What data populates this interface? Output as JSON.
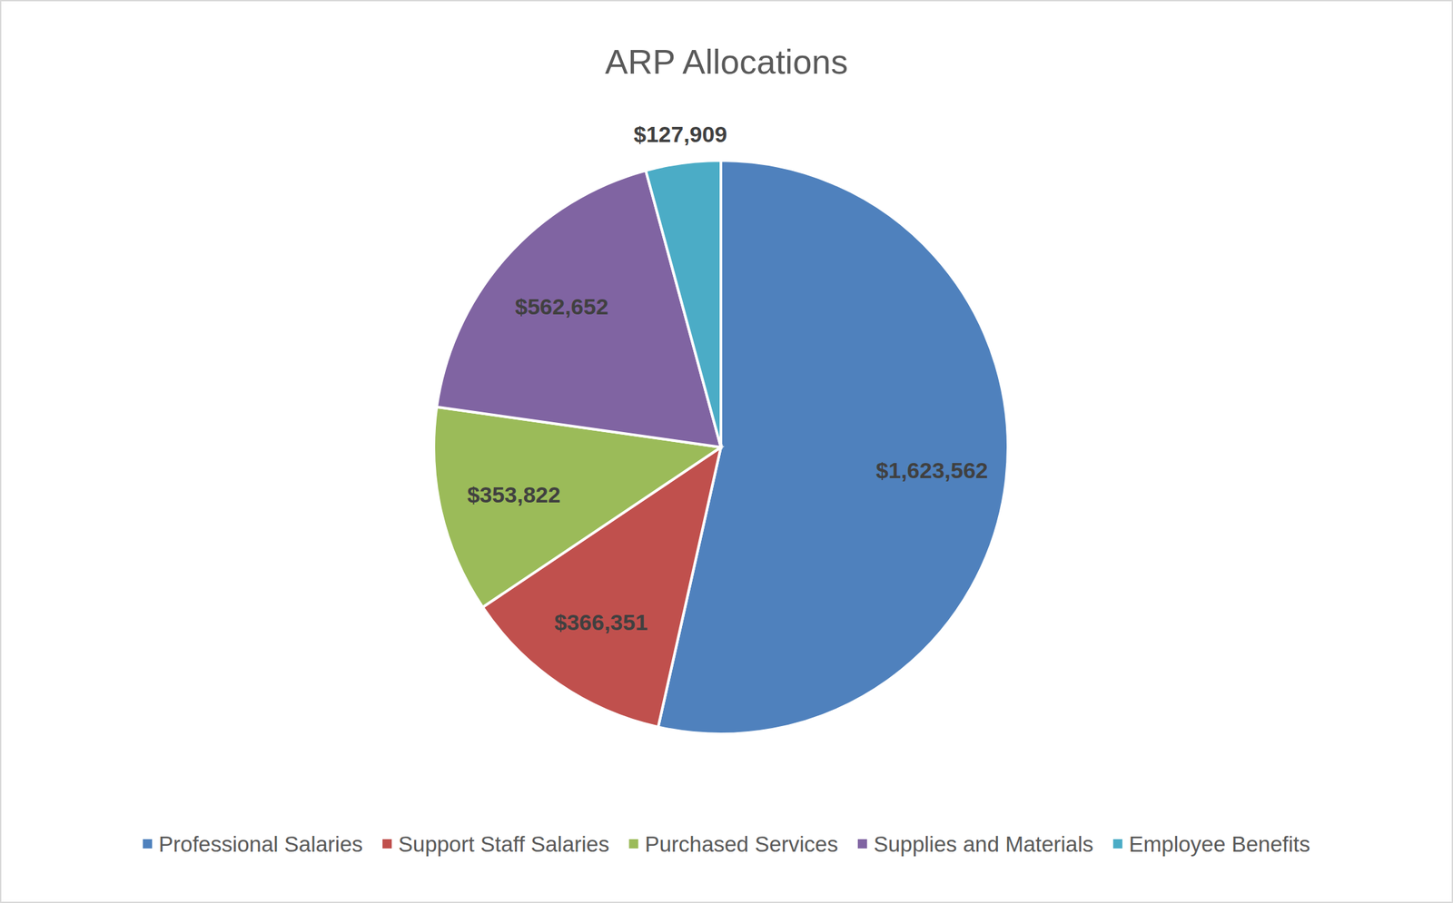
{
  "chart_data": {
    "type": "pie",
    "title": "ARP Allocations",
    "categories": [
      "Professional Salaries",
      "Support Staff Salaries",
      "Purchased Services",
      "Supplies and Materials",
      "Employee Benefits"
    ],
    "values": [
      1623562,
      366351,
      353822,
      562652,
      127909
    ],
    "value_labels": [
      "$1,623,562",
      "$366,351",
      "$353,822",
      "$562,652",
      "$127,909"
    ],
    "colors": [
      "#4f81bd",
      "#c0504d",
      "#9bbb59",
      "#8064a2",
      "#4bacc6"
    ],
    "data_labels": true,
    "legend": "bottom"
  }
}
